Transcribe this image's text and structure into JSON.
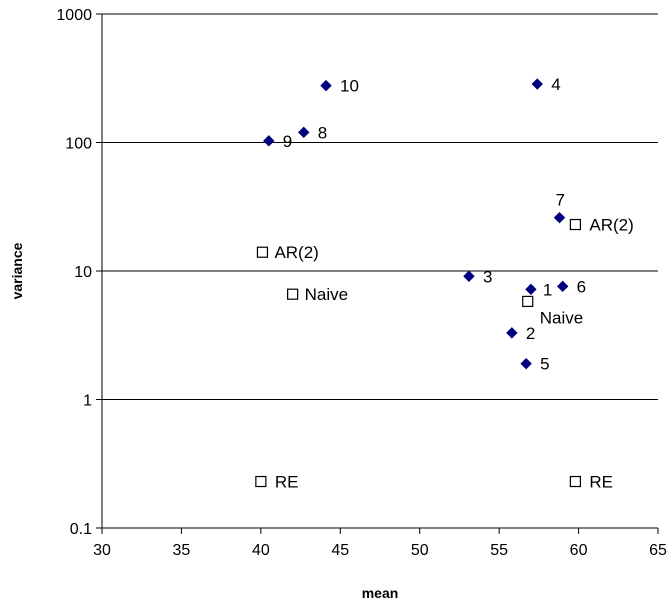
{
  "chart_data": {
    "type": "scatter",
    "xlabel": "mean",
    "ylabel": "variance",
    "xlim": [
      30,
      65
    ],
    "ylim": [
      0.1,
      1000
    ],
    "y_scale": "log",
    "x_ticks": [
      "30",
      "35",
      "40",
      "45",
      "50",
      "55",
      "60",
      "65"
    ],
    "y_ticks": [
      "0.1",
      "1",
      "10",
      "100",
      "1000"
    ],
    "grid": "horizontal",
    "legend": "none",
    "series": [
      {
        "marker": "filled-diamond",
        "color": "#00007f",
        "points": [
          {
            "label": "1",
            "x": 57.0,
            "y": 7.2
          },
          {
            "label": "2",
            "x": 55.8,
            "y": 3.3
          },
          {
            "label": "3",
            "x": 53.1,
            "y": 9.1
          },
          {
            "label": "4",
            "x": 57.4,
            "y": 285
          },
          {
            "label": "5",
            "x": 56.7,
            "y": 1.9
          },
          {
            "label": "6",
            "x": 59.0,
            "y": 7.6
          },
          {
            "label": "7",
            "x": 58.8,
            "y": 26
          },
          {
            "label": "8",
            "x": 42.7,
            "y": 120
          },
          {
            "label": "9",
            "x": 40.5,
            "y": 103
          },
          {
            "label": "10",
            "x": 44.1,
            "y": 277
          }
        ]
      },
      {
        "marker": "open-square",
        "color": "#000000",
        "points": [
          {
            "label": "AR(2)",
            "x": 40.1,
            "y": 14
          },
          {
            "label": "Naive",
            "x": 42.0,
            "y": 6.6
          },
          {
            "label": "RE",
            "x": 40.0,
            "y": 0.23
          },
          {
            "label": "AR(2)",
            "x": 59.8,
            "y": 23
          },
          {
            "label": "Naive",
            "x": 56.8,
            "y": 5.8
          },
          {
            "label": "RE",
            "x": 59.8,
            "y": 0.23
          }
        ]
      }
    ]
  }
}
